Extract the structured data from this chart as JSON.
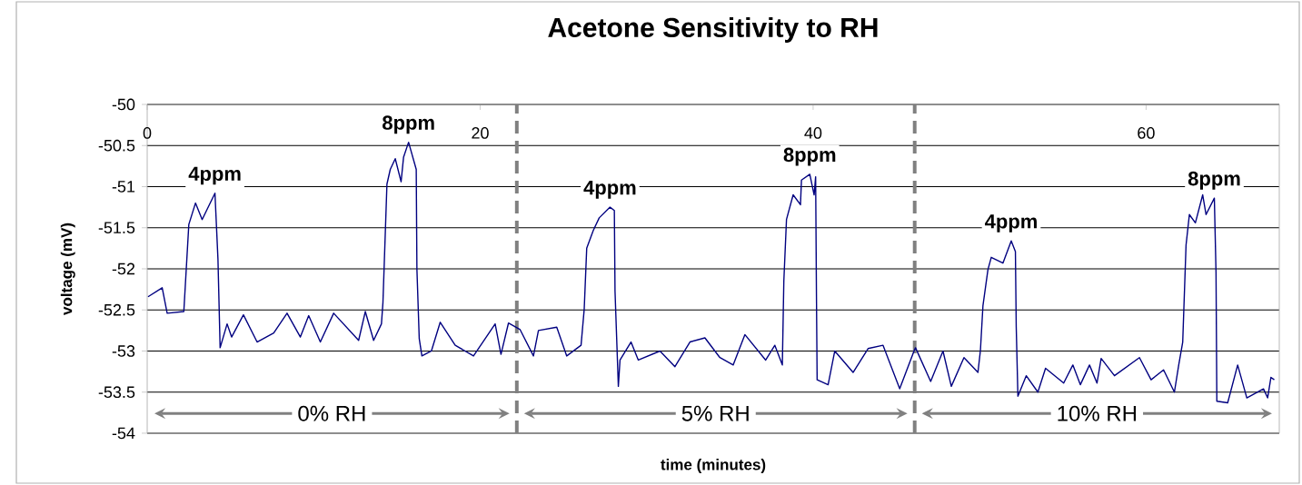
{
  "chart_data": {
    "type": "line",
    "title": "Acetone Sensitivity to RH",
    "xlabel": "time (minutes)",
    "ylabel": "voltage (mV)",
    "xlim": [
      0,
      68
    ],
    "xticks": [
      0,
      20,
      40,
      60
    ],
    "ylim": [
      -54,
      -50
    ],
    "yticks": [
      -54,
      -53.5,
      -53,
      -52.5,
      -52,
      -51.5,
      -51,
      -50.5,
      -50
    ],
    "grid": "y",
    "series": [
      {
        "color": "#000080",
        "x": [
          0.05,
          0.9,
          1.2,
          2.2,
          2.5,
          2.9,
          3.3,
          4.07,
          4.25,
          4.38,
          4.8,
          5.07,
          5.78,
          6.6,
          7.6,
          8.4,
          9.2,
          9.7,
          10.4,
          11.2,
          12.7,
          13.1,
          13.6,
          14.07,
          14.16,
          14.4,
          14.6,
          14.9,
          15.25,
          15.4,
          15.7,
          16.16,
          16.2,
          16.34,
          16.5,
          17.07,
          17.6,
          18.5,
          19.6,
          20.9,
          21.25,
          21.7,
          22.4,
          23.2,
          23.5,
          24.6,
          25.2,
          26.06,
          26.25,
          26.4,
          26.8,
          27.15,
          27.8,
          28.06,
          28.1,
          28.3,
          28.4,
          29.06,
          29.5,
          30.8,
          31.7,
          32.6,
          33.5,
          34.4,
          35.2,
          35.9,
          37.15,
          37.7,
          38.15,
          38.24,
          38.4,
          38.8,
          39.24,
          39.3,
          39.8,
          40.06,
          40.15,
          40.2,
          40.24,
          40.9,
          41.3,
          42.4,
          43.3,
          44.2,
          45.2,
          46.06,
          46.15,
          47.06,
          47.8,
          48.3,
          49.06,
          49.9,
          50.05,
          50.2,
          50.5,
          50.7,
          51.4,
          51.9,
          52.15,
          52.2,
          52.3,
          52.8,
          53.5,
          53.96,
          55.05,
          55.6,
          56.05,
          56.6,
          57.05,
          57.3,
          58.1,
          59.6,
          60.3,
          61.05,
          61.7,
          61.96,
          62.2,
          62.4,
          62.6,
          62.96,
          63.4,
          63.6,
          64.1,
          64.2,
          64.25,
          64.9,
          65.5,
          66.05,
          67.05,
          67.3,
          67.5,
          67.7
        ],
        "values": [
          -52.34,
          -52.23,
          -52.54,
          -52.52,
          -51.46,
          -51.2,
          -51.4,
          -51.08,
          -51.88,
          -52.96,
          -52.67,
          -52.83,
          -52.56,
          -52.89,
          -52.78,
          -52.54,
          -52.83,
          -52.57,
          -52.89,
          -52.54,
          -52.87,
          -52.52,
          -52.87,
          -52.67,
          -52.41,
          -50.97,
          -50.79,
          -50.66,
          -50.94,
          -50.64,
          -50.46,
          -50.79,
          -52.0,
          -52.85,
          -53.06,
          -53.0,
          -52.65,
          -52.93,
          -53.06,
          -52.67,
          -53.04,
          -52.66,
          -52.74,
          -53.06,
          -52.75,
          -52.71,
          -53.06,
          -52.93,
          -52.49,
          -51.75,
          -51.53,
          -51.38,
          -51.25,
          -51.29,
          -52.27,
          -53.43,
          -53.11,
          -52.89,
          -53.11,
          -53.0,
          -53.19,
          -52.89,
          -52.84,
          -53.08,
          -53.17,
          -52.8,
          -53.11,
          -52.93,
          -53.17,
          -52.15,
          -51.4,
          -51.1,
          -51.22,
          -50.92,
          -50.85,
          -51.1,
          -50.88,
          -52.34,
          -53.35,
          -53.41,
          -53.0,
          -53.26,
          -52.97,
          -52.93,
          -53.46,
          -53.0,
          -52.96,
          -53.37,
          -53.0,
          -53.43,
          -53.08,
          -53.26,
          -52.99,
          -52.45,
          -52.01,
          -51.86,
          -51.93,
          -51.66,
          -51.79,
          -52.71,
          -53.55,
          -53.3,
          -53.5,
          -53.21,
          -53.39,
          -53.17,
          -53.41,
          -53.17,
          -53.39,
          -53.09,
          -53.3,
          -53.08,
          -53.35,
          -53.23,
          -53.5,
          -53.17,
          -52.89,
          -51.71,
          -51.34,
          -51.44,
          -51.1,
          -51.34,
          -51.14,
          -52.04,
          -53.61,
          -53.63,
          -53.17,
          -53.57,
          -53.46,
          -53.57,
          -53.32,
          -53.35
        ]
      }
    ],
    "annotations": [
      {
        "text": "4ppm",
        "x": 4.07,
        "y": -51.08
      },
      {
        "text": "8ppm",
        "x": 15.7,
        "y": -50.46
      },
      {
        "text": "4ppm",
        "x": 27.8,
        "y": -51.25
      },
      {
        "text": "8ppm",
        "x": 39.8,
        "y": -50.85
      },
      {
        "text": "4ppm",
        "x": 51.9,
        "y": -51.66
      },
      {
        "text": "8ppm",
        "x": 64.1,
        "y": -51.14
      },
      "0% RH",
      "5% RH",
      "10% RH"
    ],
    "ref_lines": [
      {
        "axis": "x",
        "value": 22.2,
        "color": "#808080",
        "line_style": "dashed"
      },
      {
        "axis": "x",
        "value": 46.1,
        "color": "#808080",
        "line_style": "dashed"
      }
    ]
  }
}
